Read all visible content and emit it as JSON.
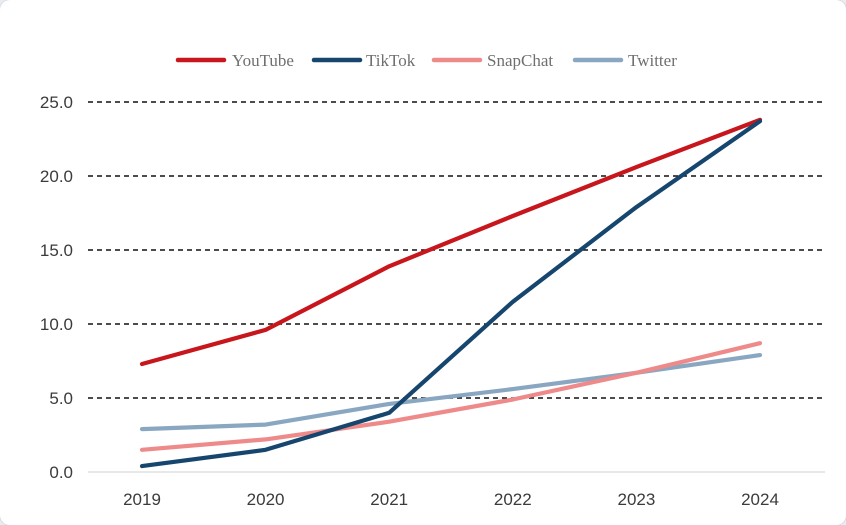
{
  "chart_data": {
    "type": "line",
    "title": "",
    "xlabel": "",
    "ylabel": "",
    "categories": [
      "2019",
      "2020",
      "2021",
      "2022",
      "2023",
      "2024"
    ],
    "y_ticks": [
      "0.0",
      "5.0",
      "10.0",
      "15.0",
      "20.0",
      "25.0"
    ],
    "ylim": [
      0,
      25
    ],
    "grid": "horizontal dashed",
    "legend_position": "top",
    "series": [
      {
        "name": "YouTube",
        "color": "#c8161d",
        "values": [
          7.3,
          9.6,
          13.9,
          17.3,
          20.6,
          23.8
        ]
      },
      {
        "name": "TikTok",
        "color": "#16466e",
        "values": [
          0.4,
          1.5,
          4.0,
          11.5,
          17.9,
          23.7
        ]
      },
      {
        "name": "SnapChat",
        "color": "#ee8a8a",
        "values": [
          1.5,
          2.2,
          3.4,
          4.9,
          6.7,
          8.7
        ]
      },
      {
        "name": "Twitter",
        "color": "#8aa7c2",
        "values": [
          2.9,
          3.2,
          4.6,
          5.6,
          6.7,
          7.9
        ]
      }
    ]
  }
}
